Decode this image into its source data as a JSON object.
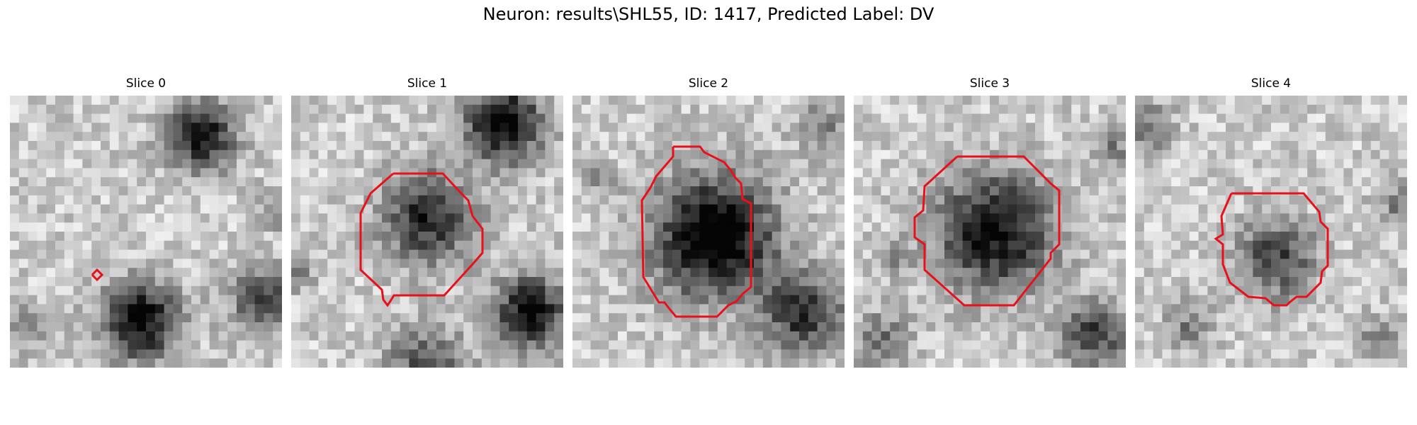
{
  "figure": {
    "title": "Neuron: results\\SHL55, ID: 1417, Predicted Label: DV"
  },
  "panels": [
    {
      "title": "Slice 0"
    },
    {
      "title": "Slice 1"
    },
    {
      "title": "Slice 2"
    },
    {
      "title": "Slice 3"
    },
    {
      "title": "Slice 4"
    }
  ],
  "colors": {
    "contour": "#e8101a"
  }
}
